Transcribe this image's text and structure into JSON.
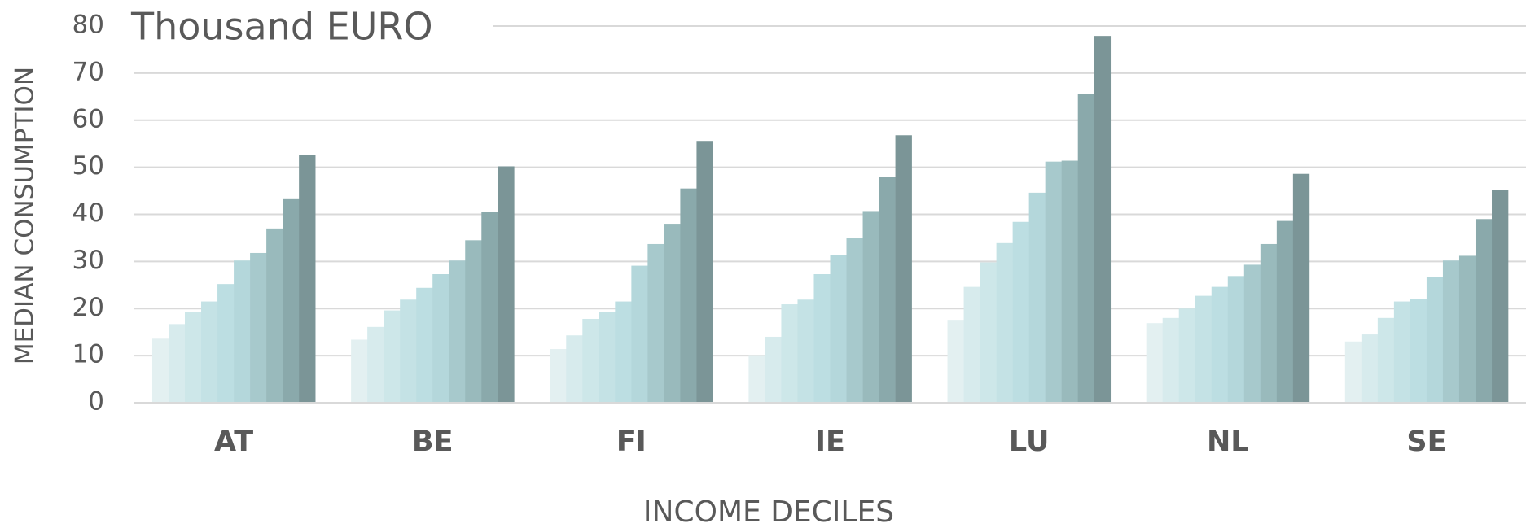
{
  "chart_data": {
    "type": "bar",
    "title": "Thousand EURO",
    "xlabel": "INCOME DECILES",
    "ylabel": "MEDIAN CONSUMPTION",
    "categories": [
      "AT",
      "BE",
      "FI",
      "IE",
      "LU",
      "NL",
      "SE"
    ],
    "series": [
      {
        "color": "#e3f0f1",
        "values": [
          13.6,
          13.4,
          11.4,
          10.1,
          17.6,
          16.9,
          13
        ]
      },
      {
        "color": "#d7ebed",
        "values": [
          16.7,
          16.1,
          14.3,
          14,
          24.6,
          18,
          14.5
        ]
      },
      {
        "color": "#cde7e9",
        "values": [
          19.2,
          19.6,
          17.8,
          20.9,
          29.8,
          20,
          18
        ]
      },
      {
        "color": "#c4e2e5",
        "values": [
          21.5,
          21.9,
          19.2,
          21.9,
          33.9,
          22.7,
          21.5
        ]
      },
      {
        "color": "#bcdee2",
        "values": [
          25.2,
          24.4,
          21.5,
          27.3,
          38.4,
          24.6,
          22.1
        ]
      },
      {
        "color": "#b4d7db",
        "values": [
          30.2,
          27.3,
          29.1,
          31.4,
          44.6,
          26.9,
          26.7
        ]
      },
      {
        "color": "#a7c9cc",
        "values": [
          31.8,
          30.2,
          33.7,
          34.9,
          51.2,
          29.3,
          30.2
        ]
      },
      {
        "color": "#99babc",
        "values": [
          37,
          34.5,
          38,
          40.7,
          51.4,
          33.7,
          31.2
        ]
      },
      {
        "color": "#8aa9ab",
        "values": [
          43.4,
          40.5,
          45.5,
          47.9,
          65.5,
          38.6,
          39
        ]
      },
      {
        "color": "#7b9597",
        "values": [
          52.7,
          50.2,
          55.6,
          56.8,
          77.9,
          48.6,
          45.2
        ]
      }
    ],
    "ylim": [
      0,
      80
    ],
    "yticks": [
      0,
      10,
      20,
      30,
      40,
      50,
      60,
      70,
      80
    ],
    "grid": true
  }
}
